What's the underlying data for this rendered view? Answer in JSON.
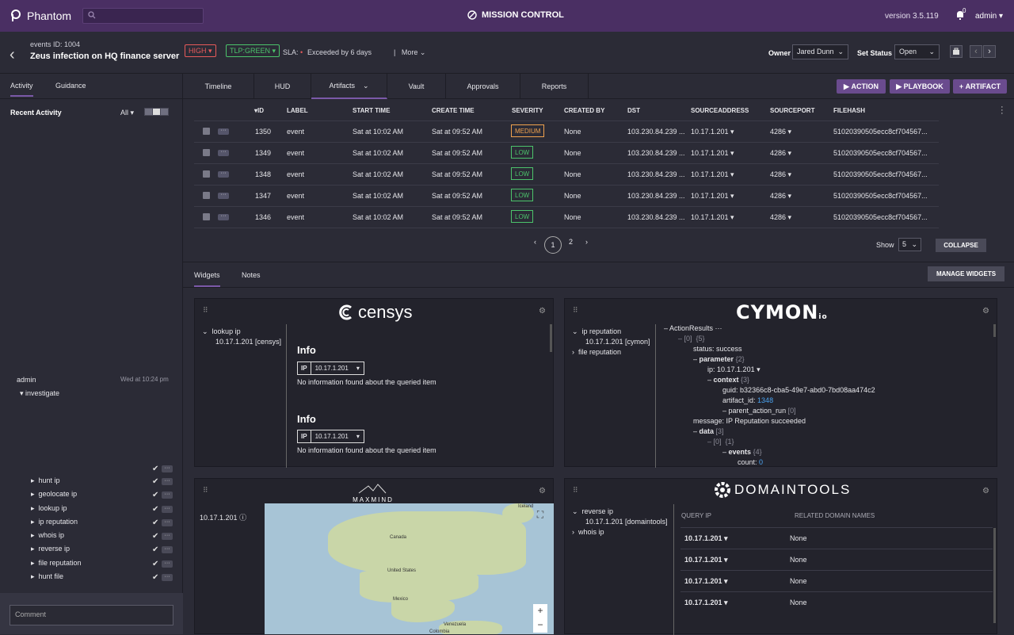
{
  "app": {
    "name": "Phantom",
    "title": "MISSION CONTROL",
    "version": "version 3.5.119",
    "notifications": "0",
    "user": "admin"
  },
  "event": {
    "id_label": "events ID: 1004",
    "title": "Zeus infection on HQ finance server",
    "severity": "HIGH",
    "tlp": "TLP:GREEN",
    "sla_label": "SLA:",
    "sla_value": "Exceeded by 6 days",
    "more": "More"
  },
  "owner": {
    "label": "Owner",
    "value": "Jared Dunn"
  },
  "status": {
    "label": "Set Status",
    "value": "Open"
  },
  "left": {
    "tabs": [
      "Activity",
      "Guidance"
    ],
    "recent": "Recent Activity",
    "filter": "All",
    "user": "admin",
    "time": "Wed at 10:24 pm",
    "group": "investigate",
    "items": [
      "hunt ip",
      "geolocate ip",
      "lookup ip",
      "ip reputation",
      "whois ip",
      "reverse ip",
      "file reputation",
      "hunt file"
    ],
    "comment_placeholder": "Comment"
  },
  "main_tabs": [
    "Timeline",
    "HUD",
    "Artifacts",
    "Vault",
    "Approvals",
    "Reports"
  ],
  "actions": {
    "action": "ACTION",
    "playbook": "PLAYBOOK",
    "artifact": "ARTIFACT"
  },
  "table": {
    "headers": [
      "ID",
      "LABEL",
      "START TIME",
      "CREATE TIME",
      "SEVERITY",
      "CREATED BY",
      "DST",
      "SOURCEADDRESS",
      "SOURCEPORT",
      "FILEHASH"
    ],
    "rows": [
      {
        "id": "1350",
        "label": "event",
        "start": "Sat at 10:02 AM",
        "create": "Sat at 09:52 AM",
        "severity": "MEDIUM",
        "created_by": "None",
        "dst": "103.230.84.239 ...",
        "src": "10.17.1.201",
        "port": "4286",
        "hash": "51020390505ecc8cf704567..."
      },
      {
        "id": "1349",
        "label": "event",
        "start": "Sat at 10:02 AM",
        "create": "Sat at 09:52 AM",
        "severity": "LOW",
        "created_by": "None",
        "dst": "103.230.84.239 ...",
        "src": "10.17.1.201",
        "port": "4286",
        "hash": "51020390505ecc8cf704567..."
      },
      {
        "id": "1348",
        "label": "event",
        "start": "Sat at 10:02 AM",
        "create": "Sat at 09:52 AM",
        "severity": "LOW",
        "created_by": "None",
        "dst": "103.230.84.239 ...",
        "src": "10.17.1.201",
        "port": "4286",
        "hash": "51020390505ecc8cf704567..."
      },
      {
        "id": "1347",
        "label": "event",
        "start": "Sat at 10:02 AM",
        "create": "Sat at 09:52 AM",
        "severity": "LOW",
        "created_by": "None",
        "dst": "103.230.84.239 ...",
        "src": "10.17.1.201",
        "port": "4286",
        "hash": "51020390505ecc8cf704567..."
      },
      {
        "id": "1346",
        "label": "event",
        "start": "Sat at 10:02 AM",
        "create": "Sat at 09:52 AM",
        "severity": "LOW",
        "created_by": "None",
        "dst": "103.230.84.239 ...",
        "src": "10.17.1.201",
        "port": "4286",
        "hash": "51020390505ecc8cf704567..."
      }
    ],
    "pages": [
      "1",
      "2"
    ],
    "show_label": "Show",
    "show_value": "5",
    "collapse": "COLLAPSE"
  },
  "widget_tabs": [
    "Widgets",
    "Notes"
  ],
  "manage": "MANAGE WIDGETS",
  "censys": {
    "logo": "censys",
    "action": "lookup ip",
    "target": "10.17.1.201 [censys]",
    "info": "Info",
    "ip_label": "IP",
    "ip": "10.17.1.201",
    "msg": "No information found about the queried item"
  },
  "cymon": {
    "logo": "CYMON",
    "logo_suffix": "io",
    "actions": [
      "ip reputation",
      "file reputation"
    ],
    "target": "10.17.1.201 [cymon]",
    "results": {
      "root": "ActionResults",
      "idx0": "[0]",
      "idx0_count": "{5}",
      "status_k": "status:",
      "status_v": "success",
      "param": "parameter",
      "param_count": "{2}",
      "ip_k": "ip:",
      "ip_v": "10.17.1.201",
      "context": "context",
      "context_count": "{3}",
      "guid_k": "guid:",
      "guid_v": "b32366c8-cba5-49e7-abd0-7bd08aa474c2",
      "artifact_k": "artifact_id:",
      "artifact_v": "1348",
      "parent": "parent_action_run",
      "parent_count": "[0]",
      "message_k": "message:",
      "message_v": "IP Reputation succeeded",
      "data": "data",
      "data_count": "[3]",
      "d0": "[0]",
      "d0_count": "{1}",
      "events": "events",
      "events_count": "{4}",
      "count_k": "count:",
      "count_v": "0"
    }
  },
  "maxmind": {
    "logo": "MAXMIND",
    "ip": "10.17.1.201",
    "labels": [
      "Iceland",
      "Canada",
      "United States",
      "Mexico",
      "Venezuela",
      "Colombia"
    ]
  },
  "domaintools": {
    "logo": "DOMAINTOOLS",
    "actions": [
      "reverse ip",
      "whois ip"
    ],
    "target": "10.17.1.201 [domaintools]",
    "headers": [
      "QUERY IP",
      "RELATED DOMAIN NAMES"
    ],
    "rows": [
      {
        "ip": "10.17.1.201",
        "names": "None"
      },
      {
        "ip": "10.17.1.201",
        "names": "None"
      },
      {
        "ip": "10.17.1.201",
        "names": "None"
      },
      {
        "ip": "10.17.1.201",
        "names": "None"
      }
    ]
  },
  "colors": {
    "topbar": "#4a2f63",
    "accent": "#7b59a8",
    "medium": "#f0a24e",
    "low": "#4cc36b",
    "high": "#e85a5a"
  }
}
